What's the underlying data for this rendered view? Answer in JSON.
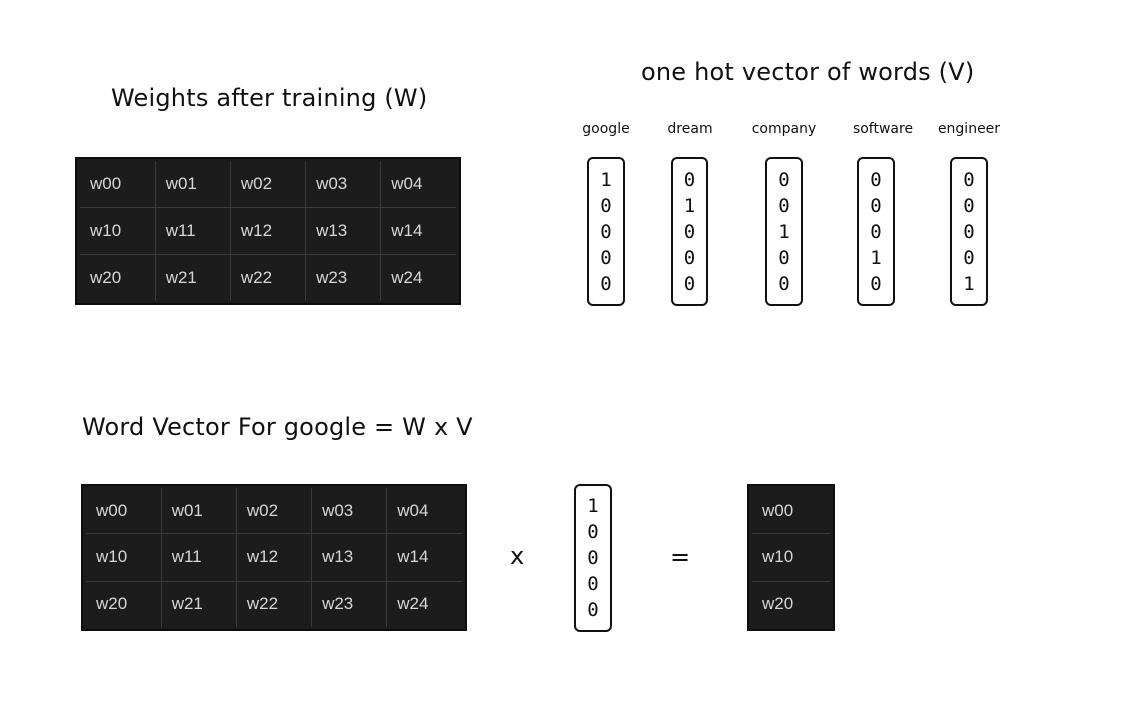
{
  "weights_title": "Weights after training (W)",
  "onehot_title": "one hot vector of words (V)",
  "wordvec_title": "Word Vector For google = W x V",
  "weights_matrix": [
    [
      "w00",
      "w01",
      "w02",
      "w03",
      "w04"
    ],
    [
      "w10",
      "w11",
      "w12",
      "w13",
      "w14"
    ],
    [
      "w20",
      "w21",
      "w22",
      "w23",
      "w24"
    ]
  ],
  "onehot_vectors": [
    {
      "word": "google",
      "values": [
        "1",
        "0",
        "0",
        "0",
        "0"
      ]
    },
    {
      "word": "dream",
      "values": [
        "0",
        "1",
        "0",
        "0",
        "0"
      ]
    },
    {
      "word": "company",
      "values": [
        "0",
        "0",
        "1",
        "0",
        "0"
      ]
    },
    {
      "word": "software",
      "values": [
        "0",
        "0",
        "0",
        "1",
        "0"
      ]
    },
    {
      "word": "engineer",
      "values": [
        "0",
        "0",
        "0",
        "0",
        "1"
      ]
    }
  ],
  "calc_vector": [
    "1",
    "0",
    "0",
    "0",
    "0"
  ],
  "multiply_symbol": "x",
  "equals_symbol": "=",
  "result_vector": [
    "w00",
    "w10",
    "w20"
  ]
}
